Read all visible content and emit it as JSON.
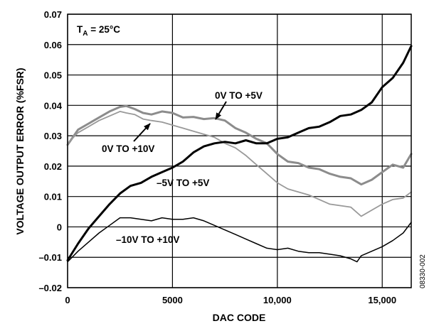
{
  "chart_data": {
    "type": "line",
    "title": "",
    "xlabel": "DAC CODE",
    "ylabel": "VOLTAGE OUTPUT ERROR (%FSR)",
    "xlim": [
      0,
      16383
    ],
    "ylim": [
      -0.02,
      0.07
    ],
    "grid": true,
    "x_ticks": [
      0,
      5000,
      10000,
      15000
    ],
    "x_tick_labels": [
      "0",
      "5000",
      "10,000",
      "15,000"
    ],
    "y_ticks": [
      -0.02,
      -0.01,
      0,
      0.01,
      0.02,
      0.03,
      0.04,
      0.05,
      0.06,
      0.07
    ],
    "y_tick_labels": [
      "–0.02",
      "–0.01",
      "0",
      "0.01",
      "0.02",
      "0.03",
      "0.04",
      "0.05",
      "0.06",
      "0.07"
    ],
    "condition": {
      "main": "T",
      "sub": "A",
      "rest": " = 25°C"
    },
    "figure_id": "08330-002",
    "series": [
      {
        "name": "0V TO +5V",
        "color": "#8c8c8c",
        "width": 3,
        "x": [
          0,
          500,
          1000,
          1500,
          2000,
          2500,
          2800,
          3200,
          3600,
          4000,
          4500,
          5000,
          5500,
          6000,
          6500,
          7000,
          7500,
          8000,
          8500,
          9000,
          9500,
          10000,
          10500,
          11000,
          11500,
          12000,
          12500,
          13000,
          13500,
          14000,
          14500,
          15000,
          15500,
          16000,
          16383
        ],
        "y": [
          0.027,
          0.032,
          0.034,
          0.036,
          0.038,
          0.0395,
          0.0398,
          0.0388,
          0.0375,
          0.037,
          0.038,
          0.0375,
          0.036,
          0.0362,
          0.0355,
          0.0358,
          0.035,
          0.0325,
          0.031,
          0.029,
          0.0275,
          0.024,
          0.0215,
          0.021,
          0.0195,
          0.019,
          0.0175,
          0.0165,
          0.016,
          0.014,
          0.0155,
          0.018,
          0.0205,
          0.0195,
          0.024
        ]
      },
      {
        "name": "0V TO +10V",
        "color": "#999999",
        "width": 1.8,
        "x": [
          0,
          500,
          1000,
          1500,
          2000,
          2500,
          2800,
          3200,
          3600,
          4000,
          4500,
          5000,
          5500,
          6000,
          6500,
          7000,
          7500,
          8000,
          8500,
          9000,
          9500,
          10000,
          10500,
          11000,
          11500,
          12000,
          12500,
          13000,
          13500,
          14000,
          14500,
          15000,
          15500,
          16000,
          16383
        ],
        "y": [
          0.0275,
          0.031,
          0.033,
          0.035,
          0.0365,
          0.038,
          0.0375,
          0.037,
          0.0355,
          0.035,
          0.0345,
          0.0335,
          0.0325,
          0.0315,
          0.0305,
          0.0295,
          0.0275,
          0.026,
          0.0235,
          0.0205,
          0.0175,
          0.0145,
          0.0125,
          0.0115,
          0.0105,
          0.009,
          0.0075,
          0.007,
          0.0065,
          0.0035,
          0.0055,
          0.0075,
          0.009,
          0.0095,
          0.0115
        ]
      },
      {
        "name": "–5V TO +5V",
        "color": "#000000",
        "width": 3,
        "x": [
          0,
          500,
          1000,
          1500,
          2000,
          2500,
          3000,
          3500,
          4000,
          4500,
          5000,
          5500,
          6000,
          6500,
          7000,
          7500,
          8000,
          8500,
          9000,
          9500,
          10000,
          10500,
          11000,
          11500,
          12000,
          12500,
          13000,
          13500,
          14000,
          14500,
          15000,
          15500,
          16000,
          16383
        ],
        "y": [
          -0.011,
          -0.0055,
          -0.0005,
          0.0035,
          0.0075,
          0.011,
          0.0135,
          0.0145,
          0.0165,
          0.018,
          0.0195,
          0.0215,
          0.0245,
          0.0265,
          0.0275,
          0.028,
          0.0275,
          0.0285,
          0.0275,
          0.0275,
          0.029,
          0.0295,
          0.031,
          0.0325,
          0.033,
          0.0345,
          0.0365,
          0.037,
          0.0385,
          0.041,
          0.046,
          0.049,
          0.054,
          0.0595
        ]
      },
      {
        "name": "–10V TO +10V",
        "color": "#000000",
        "width": 1.5,
        "x": [
          0,
          500,
          1000,
          1500,
          2000,
          2500,
          3000,
          3500,
          4000,
          4500,
          5000,
          5500,
          6000,
          6500,
          7000,
          7500,
          8000,
          8500,
          9000,
          9500,
          10000,
          10500,
          11000,
          11500,
          12000,
          12500,
          13000,
          13500,
          13800,
          14000,
          14500,
          15000,
          15500,
          16000,
          16383
        ],
        "y": [
          -0.0115,
          -0.008,
          -0.005,
          -0.002,
          0.0005,
          0.003,
          0.003,
          0.0025,
          0.002,
          0.003,
          0.0025,
          0.0025,
          0.003,
          0.002,
          0.0005,
          -0.001,
          -0.0025,
          -0.004,
          -0.0055,
          -0.007,
          -0.0075,
          -0.007,
          -0.008,
          -0.0085,
          -0.0085,
          -0.009,
          -0.0095,
          -0.0105,
          -0.0115,
          -0.0095,
          -0.008,
          -0.0065,
          -0.0045,
          -0.002,
          0.0015
        ]
      }
    ],
    "annotations": [
      {
        "text": "0V TO +5V",
        "series": 0,
        "arrow_to": [
          6200,
          0.0355
        ]
      },
      {
        "text": "0V TO +10V",
        "series": 1,
        "arrow_to": [
          3300,
          0.0345
        ]
      },
      {
        "text": "–5V TO +5V",
        "series": 2,
        "arrow_to": null
      },
      {
        "text": "–10V TO +10V",
        "series": 3,
        "arrow_to": null
      }
    ]
  }
}
